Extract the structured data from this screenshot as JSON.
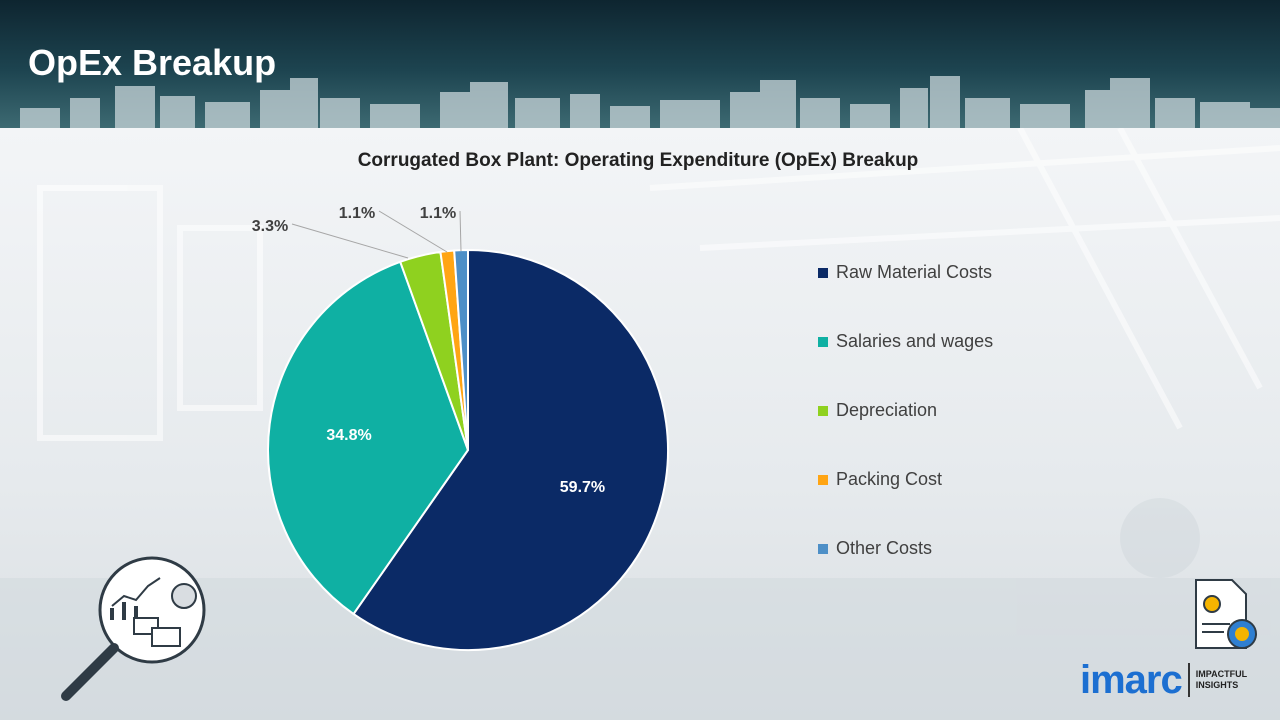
{
  "header": {
    "title": "OpEx Breakup"
  },
  "chart_data": {
    "type": "pie",
    "title": "Corrugated Box Plant: Operating Expenditure (OpEx) Breakup",
    "slices": [
      {
        "label": "Raw Material Costs",
        "value": 59.7,
        "display": "59.7%",
        "color": "#0b2a66"
      },
      {
        "label": "Salaries and wages",
        "value": 34.8,
        "display": "34.8%",
        "color": "#0fb0a3"
      },
      {
        "label": "Depreciation",
        "value": 3.3,
        "display": "3.3%",
        "color": "#8fd11f"
      },
      {
        "label": "Packing Cost",
        "value": 1.1,
        "display": "1.1%",
        "color": "#ffa514"
      },
      {
        "label": "Other Costs",
        "value": 1.1,
        "display": "1.1%",
        "color": "#4d8fc7"
      }
    ],
    "legend_position": "right"
  },
  "branding": {
    "name": "imarc",
    "tagline_line1": "IMPACTFUL",
    "tagline_line2": "INSIGHTS"
  }
}
